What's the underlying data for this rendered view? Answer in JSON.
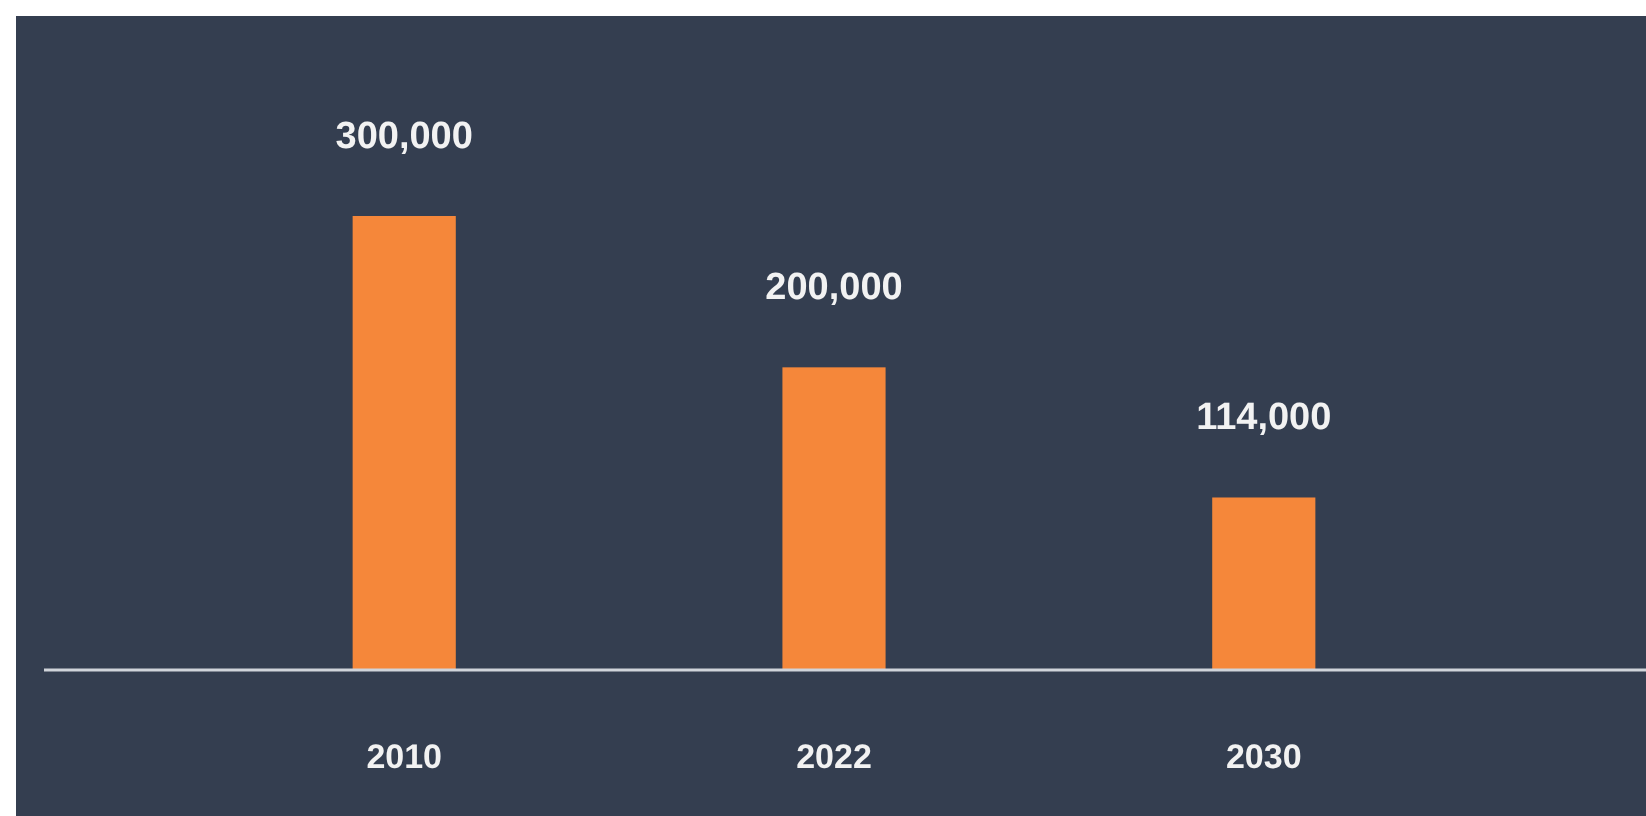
{
  "chart_data": {
    "type": "bar",
    "categories": [
      "2010",
      "2022",
      "2030"
    ],
    "values": [
      300000,
      200000,
      114000
    ],
    "value_labels": [
      "300,000",
      "200,000",
      "114,000"
    ],
    "color": "#f5873a"
  }
}
